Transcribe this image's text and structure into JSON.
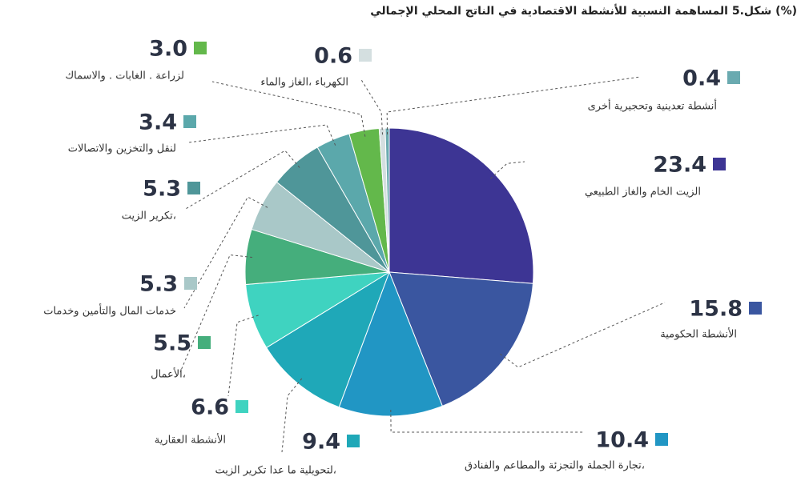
{
  "chart_data": {
    "type": "pie",
    "title": "شكل.5 المساهمة النسبية للأنشطة الاقتصادية في الناتج المحلي الإجمالي (%)",
    "categories": [
      "الزيت الخام والغاز الطبيعي",
      "الأنشطة الحكومية",
      "تجارة الجملة والتجزئة والمطاعم والفنادق،",
      "لتحويلية ما عدا تكرير الزيت،",
      "الأنشطة العقارية",
      "الأعمال،",
      "خدمات المال والتأمين وخدمات",
      "تكرير الزيت،",
      "لنقل والتخزين والاتصالات",
      "لزراعة . الغابات . والاسماك",
      "الكهرباء ،الغاز والماء",
      "أنشطة تعدينية وتحجيرية أخرى"
    ],
    "values": [
      23.4,
      15.8,
      10.4,
      9.4,
      6.6,
      5.5,
      5.3,
      5.3,
      3.4,
      3.0,
      0.6,
      0.4
    ],
    "value_labels": [
      "23.4",
      "15.8",
      "10.4",
      "9.4",
      "6.6",
      "5.5",
      "5.3",
      "5.3",
      "3.4",
      "3.0",
      "0.6",
      "0.4"
    ],
    "colors": [
      "#3d3594",
      "#3a56a0",
      "#2196c4",
      "#1fa8b8",
      "#3fd3c0",
      "#45ae7c",
      "#a9c8c8",
      "#4f9699",
      "#5ba8ab",
      "#63b84b",
      "#d4dfe0",
      "#6aaab0"
    ]
  }
}
